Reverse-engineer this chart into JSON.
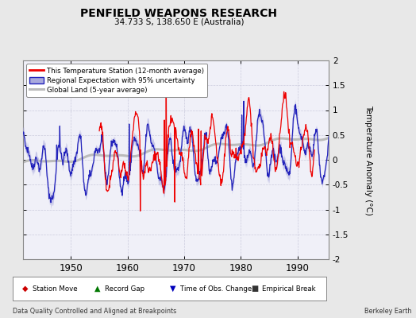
{
  "title": "PENFIELD WEAPONS RESEARCH",
  "subtitle": "34.733 S, 138.650 E (Australia)",
  "ylabel": "Temperature Anomaly (°C)",
  "ylim": [
    -2.0,
    2.0
  ],
  "xlim": [
    1941.5,
    1995.5
  ],
  "xticks": [
    1950,
    1960,
    1970,
    1980,
    1990
  ],
  "yticks": [
    -2.0,
    -1.5,
    -1.0,
    -0.5,
    0.0,
    0.5,
    1.0,
    1.5,
    2.0
  ],
  "ytick_labels": [
    "-2",
    "-1.5",
    "-1",
    "-0.5",
    "0",
    "0.5",
    "1",
    "1.5",
    "2"
  ],
  "footer_left": "Data Quality Controlled and Aligned at Breakpoints",
  "footer_right": "Berkeley Earth",
  "legend_entries": [
    "This Temperature Station (12-month average)",
    "Regional Expectation with 95% uncertainty",
    "Global Land (5-year average)"
  ],
  "station_color": "#EE0000",
  "regional_color": "#2222BB",
  "regional_band_color": "#AAAADD",
  "global_color": "#BBBBBB",
  "bg_color": "#E8E8E8",
  "plot_bg": "#F0F0F8",
  "grid_color": "#CCCCDD"
}
